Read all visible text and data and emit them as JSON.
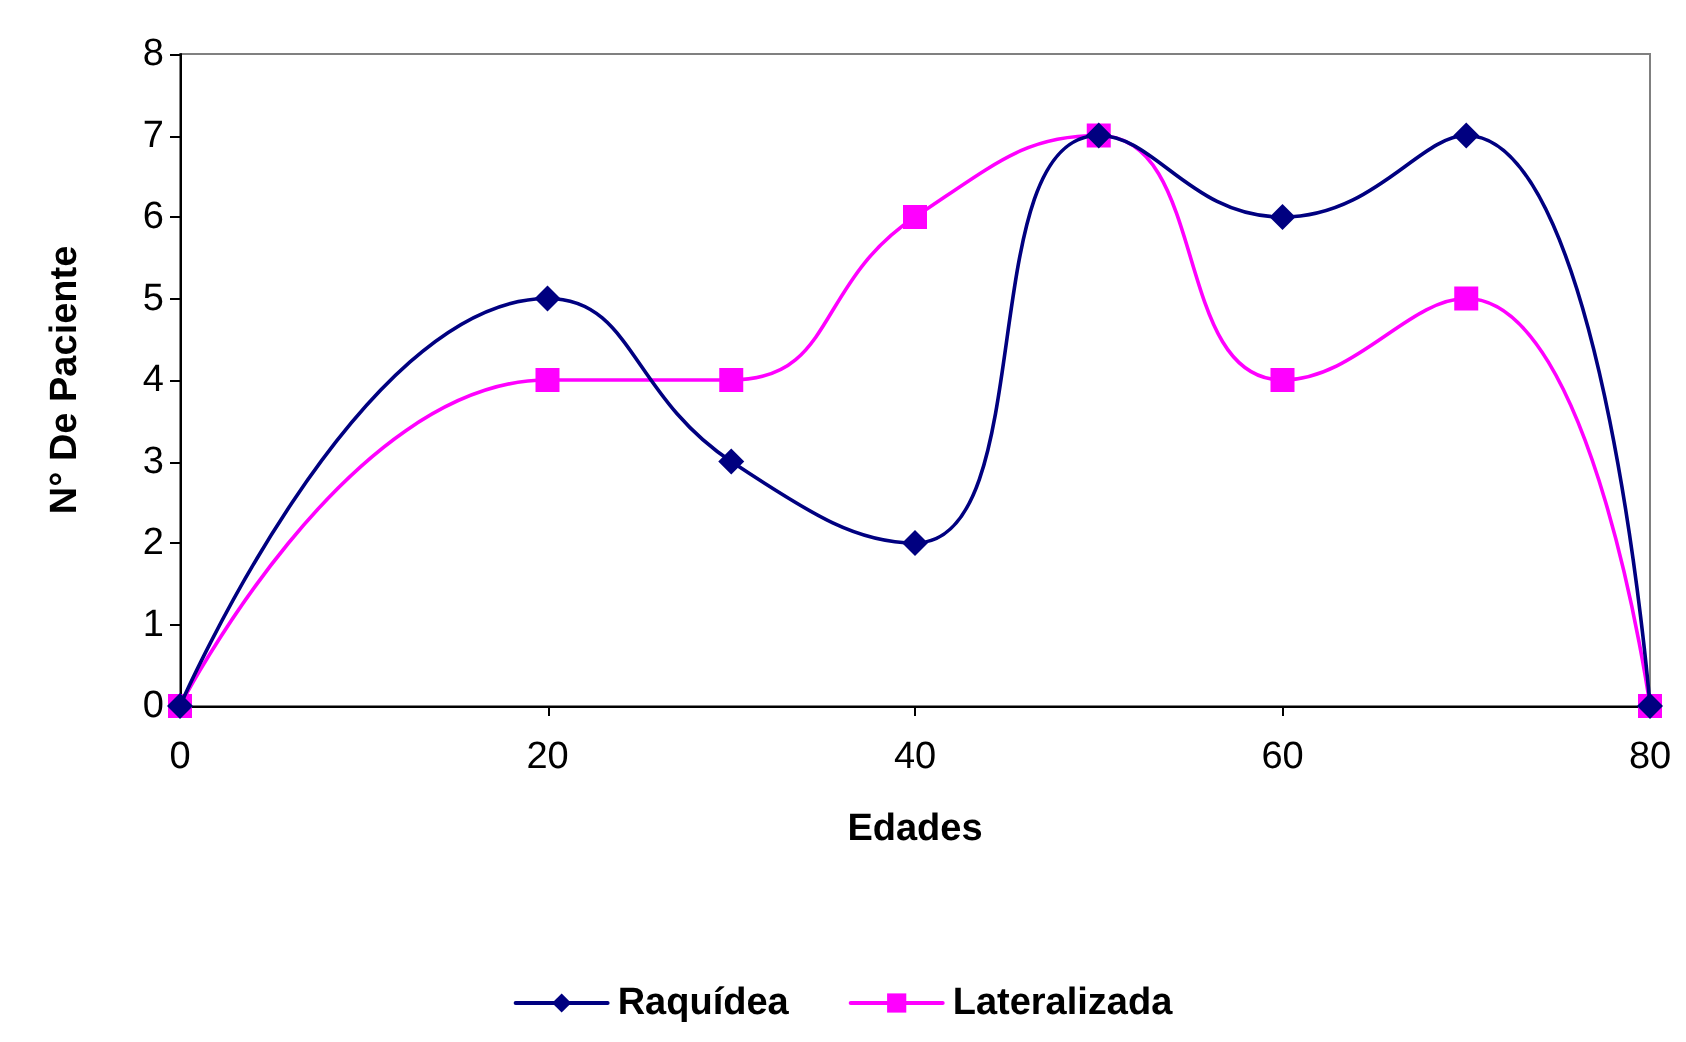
{
  "chart_data": {
    "type": "line",
    "xlabel": "Edades",
    "ylabel": "N° De Paciente",
    "x": [
      0,
      20,
      30,
      40,
      50,
      60,
      70,
      80
    ],
    "series": [
      {
        "name": "Raquídea",
        "color": "#000080",
        "marker": "diamond",
        "values": [
          0,
          5,
          3,
          2,
          7,
          6,
          7,
          0
        ]
      },
      {
        "name": "Lateralizada",
        "color": "#ff00ff",
        "marker": "square",
        "values": [
          0,
          4,
          4,
          6,
          7,
          4,
          5,
          0
        ]
      }
    ],
    "xlim": [
      0,
      80
    ],
    "xticks": [
      0,
      20,
      40,
      60,
      80
    ],
    "ylim": [
      0,
      8
    ],
    "yticks": [
      0,
      1,
      2,
      3,
      4,
      5,
      6,
      7,
      8
    ],
    "grid": false,
    "legend": "bottom",
    "line_style": "solid"
  }
}
